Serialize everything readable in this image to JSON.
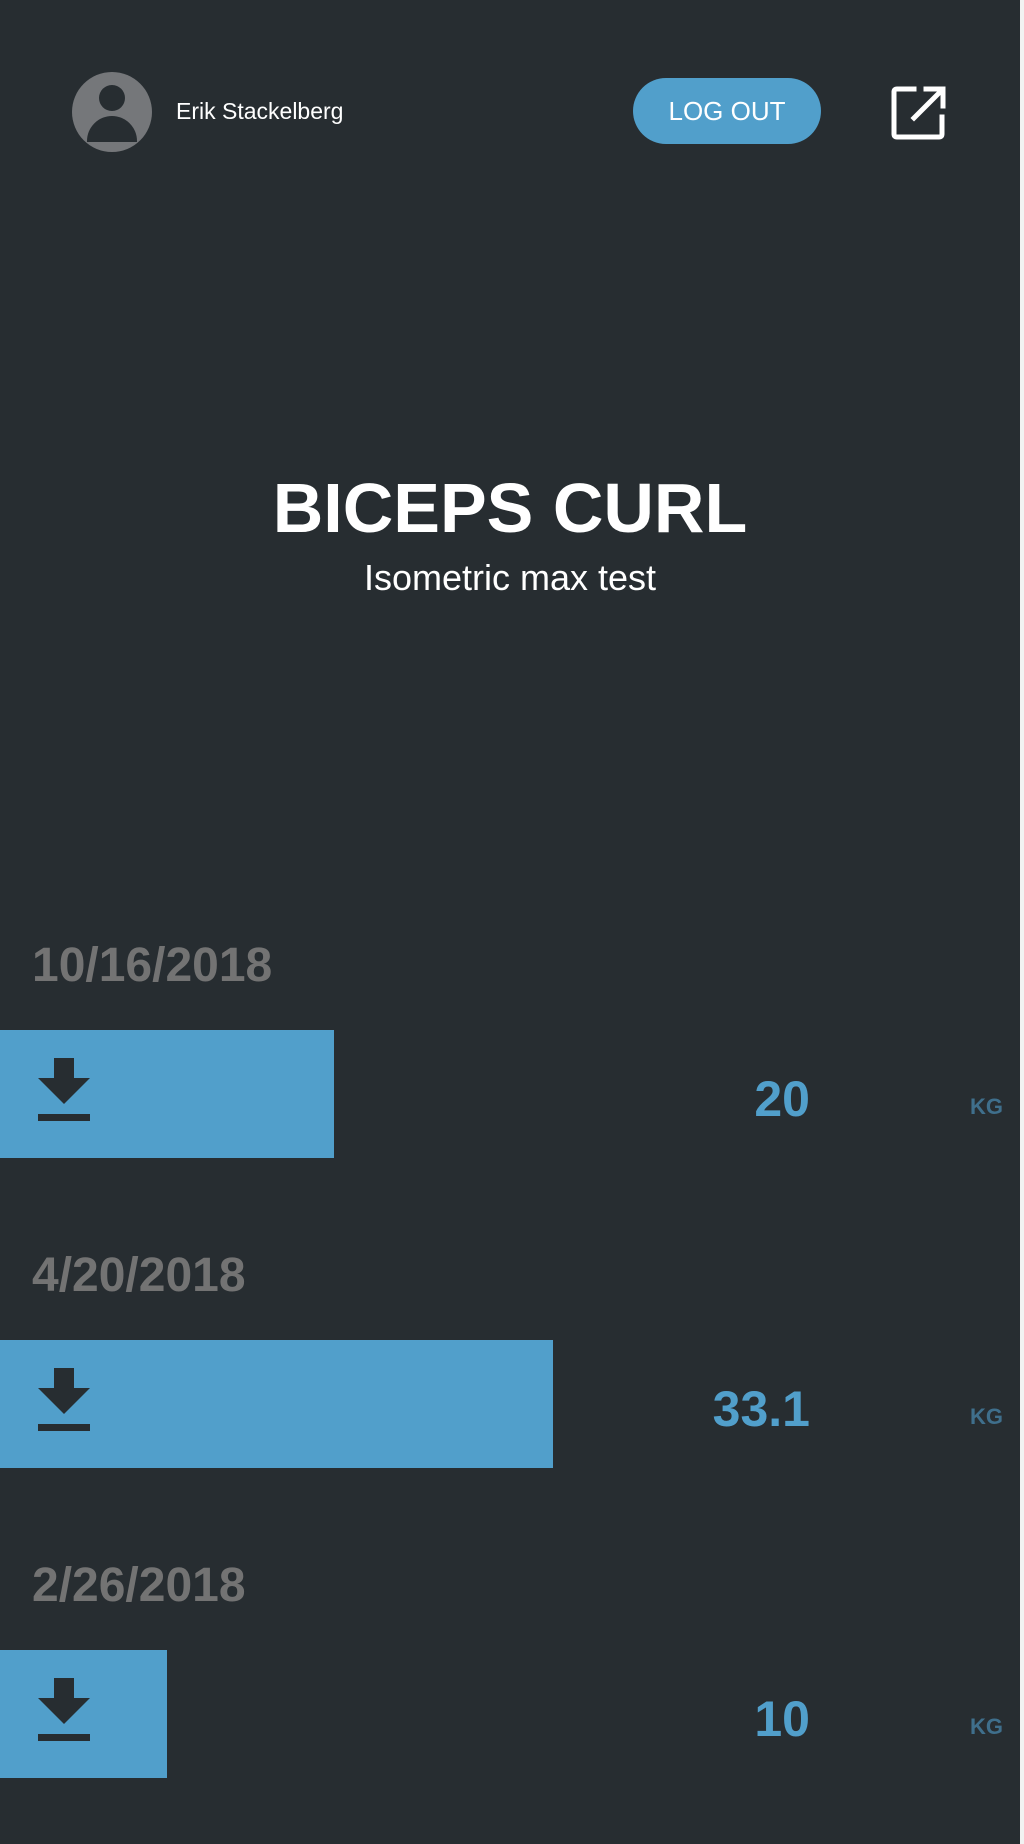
{
  "user": {
    "name": "Erik Stackelberg",
    "avatar_icon": "user-avatar-icon"
  },
  "header": {
    "logout_label": "LOG OUT",
    "external_icon": "external-link-icon"
  },
  "exercise": {
    "title": "BICEPS CURL",
    "subtitle": "Isometric max test"
  },
  "entries": [
    {
      "date": "10/16/2018",
      "value": "20",
      "unit": "KG",
      "icon": "download-icon"
    },
    {
      "date": "4/20/2018",
      "value": "33.1",
      "unit": "KG",
      "icon": "download-icon"
    },
    {
      "date": "2/26/2018",
      "value": "10",
      "unit": "KG",
      "icon": "download-icon"
    }
  ],
  "colors": {
    "background": "#272d31",
    "accent": "#519fcb",
    "date_text": "#737373",
    "unit_text": "#3f6f8c"
  }
}
